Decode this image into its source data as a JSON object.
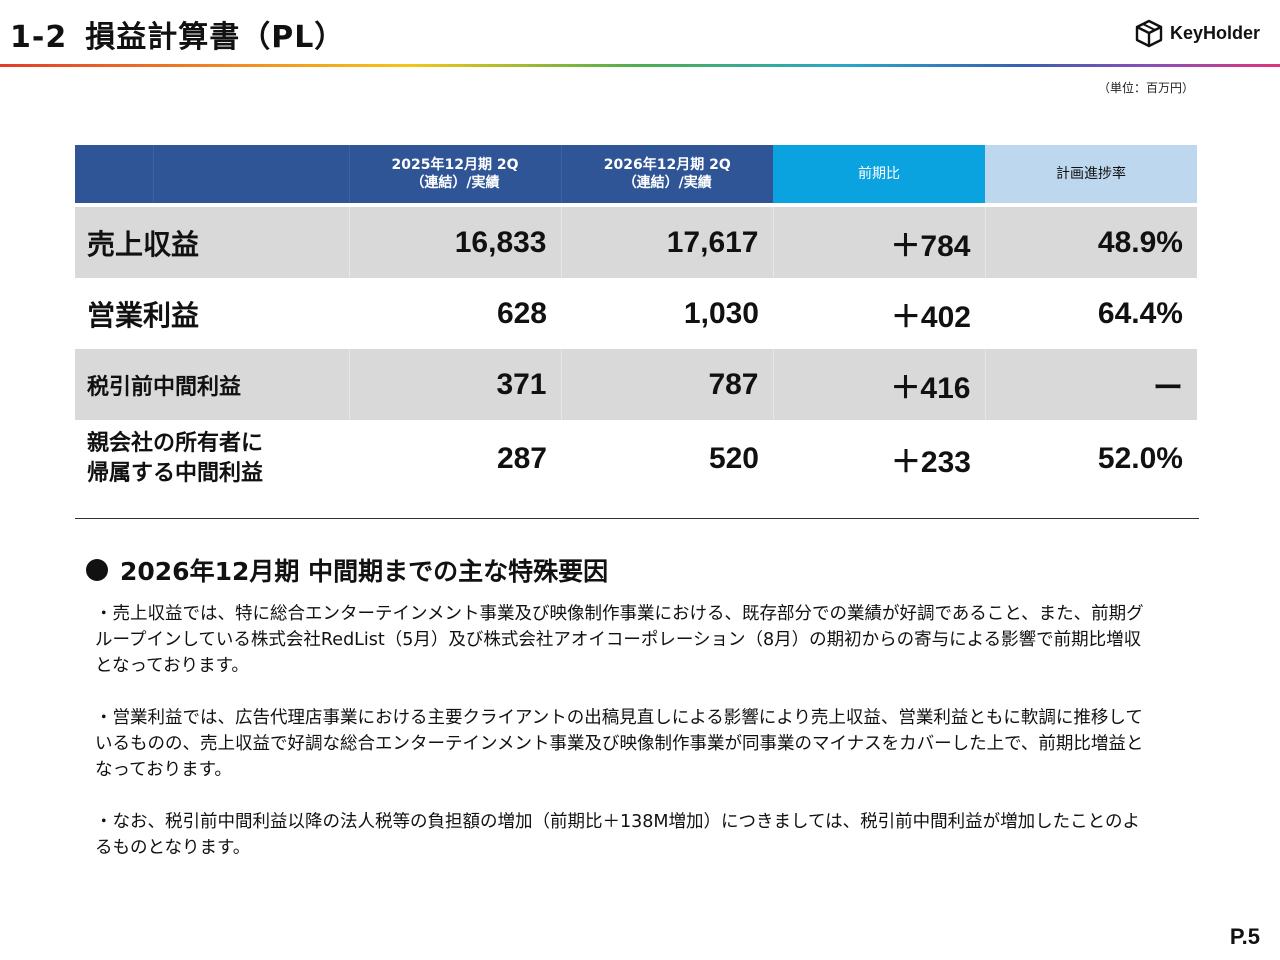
{
  "header": {
    "number": "1-2",
    "title": "損益計算書（PL）",
    "logo_text": "KeyHolder",
    "logo_icon": "cube-icon"
  },
  "unit_note": "（単位：百万円）",
  "table": {
    "columns": {
      "prev_line1": "2025年12月期 2Q",
      "prev_line2": "（連結）/実績",
      "cur_line1": "2026年12月期 2Q",
      "cur_line2": "（連結）/実績",
      "diff": "前期比",
      "progress": "計画進捗率"
    },
    "rows": [
      {
        "label": "売上収益",
        "prev": "16,833",
        "cur": "17,617",
        "diff": "＋784",
        "progress": "48.9%"
      },
      {
        "label": "営業利益",
        "prev": "628",
        "cur": "1,030",
        "diff": "＋402",
        "progress": "64.4%"
      },
      {
        "label": "税引前中間利益",
        "prev": "371",
        "cur": "787",
        "diff": "＋416",
        "progress": "ー"
      },
      {
        "label_line1": "親会社の所有者に",
        "label_line2": "帰属する中間利益",
        "prev": "287",
        "cur": "520",
        "diff": "＋233",
        "progress": "52.0%"
      }
    ]
  },
  "section": {
    "bullet": "●",
    "title": "2026年12月期 中間期までの主な特殊要因",
    "paragraphs": [
      "・売上収益では、特に総合エンターテインメント事業及び映像制作事業における、既存部分での業績が好調であること、また、前期グループインしている株式会社RedList（5月）及び株式会社アオイコーポレーション（8月）の期初からの寄与による影響で前期比増収となっております。",
      "・営業利益では、広告代理店事業における主要クライアントの出稿見直しによる影響により売上収益、営業利益ともに軟調に推移しているものの、売上収益で好調な総合エンターテインメント事業及び映像制作事業が同事業のマイナスをカバーした上で、前期比増益となっております。",
      "・なお、税引前中間利益以降の法人税等の負担額の増加（前期比＋138M増加）につきましては、税引前中間利益が増加したことのよるものとなります。"
    ]
  },
  "page_number": "P.5"
}
